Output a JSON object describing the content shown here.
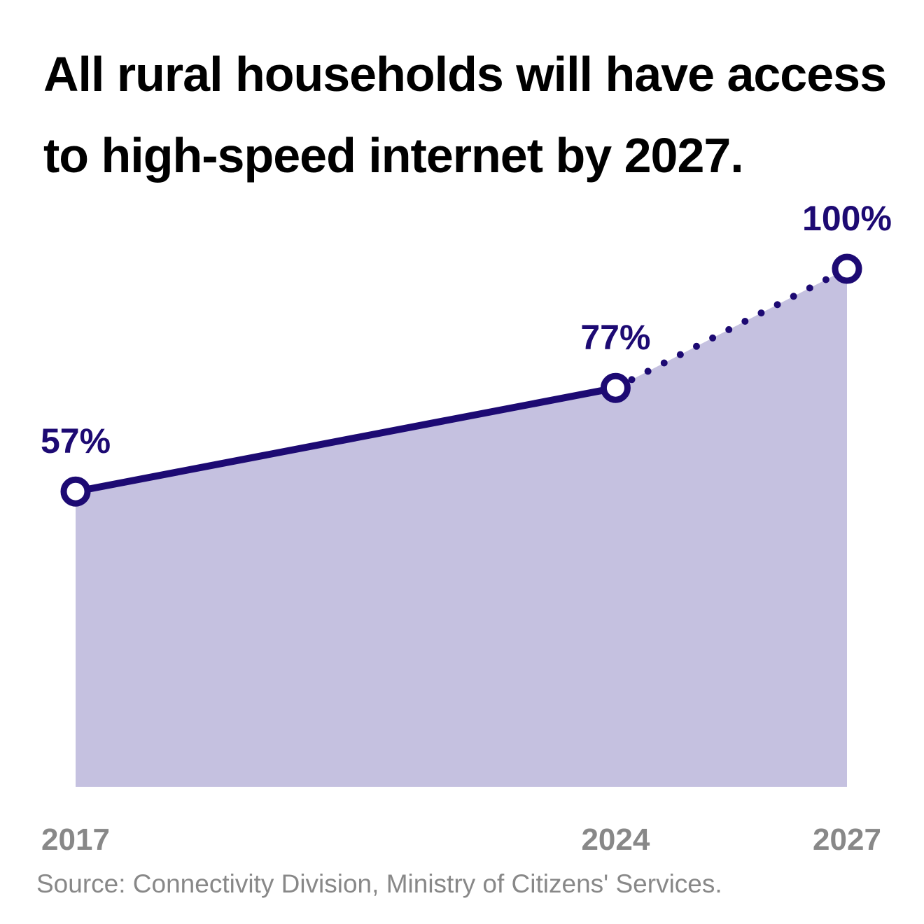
{
  "chart_data": {
    "type": "area",
    "title": "All rural households will have access to high-speed internet by 2027.",
    "source": "Source: Connectivity Division, Ministry of Citizens' Services.",
    "x": [
      "2017",
      "2024",
      "2027"
    ],
    "values": [
      57,
      77,
      100
    ],
    "data_labels": [
      "57%",
      "77%",
      "100%"
    ],
    "projected_from_index": 1,
    "ylim": [
      0,
      100
    ],
    "grid": false,
    "colors": {
      "line": "#1d0a73",
      "area": "#c5c1e0",
      "label": "#1d0a73",
      "axis_text": "#888888"
    }
  }
}
